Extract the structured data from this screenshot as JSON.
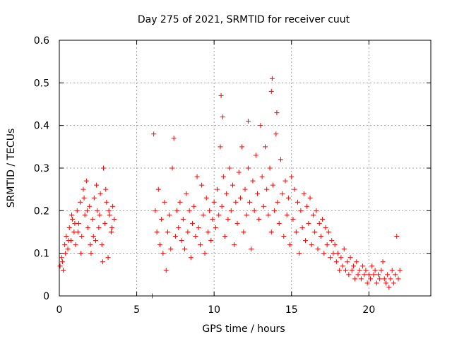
{
  "chart_data": {
    "type": "scatter",
    "title": "Day 275 of 2021, SRMTID for receiver cuut",
    "xlabel": "GPS time / hours",
    "ylabel": "SRMTID / TECUs",
    "xlim": [
      0,
      24
    ],
    "ylim": [
      0,
      0.6
    ],
    "xticks": [
      0,
      5,
      10,
      15,
      20
    ],
    "yticks": [
      0,
      0.1,
      0.2,
      0.3,
      0.4,
      0.5,
      0.6
    ],
    "xtick_labels": [
      "0",
      "5",
      "10",
      "15",
      "20"
    ],
    "ytick_labels": [
      "0",
      "0.1",
      "0.2",
      "0.3",
      "0.4",
      "0.5",
      "0.6"
    ],
    "grid": true,
    "marker": "plus",
    "color": "#ff0000",
    "series": [
      {
        "name": "SRMTID",
        "points": [
          [
            0.05,
            0.07
          ],
          [
            0.15,
            0.09
          ],
          [
            0.25,
            0.06
          ],
          [
            0.35,
            0.12
          ],
          [
            0.45,
            0.14
          ],
          [
            0.55,
            0.11
          ],
          [
            0.65,
            0.16
          ],
          [
            0.75,
            0.13
          ],
          [
            0.85,
            0.18
          ],
          [
            0.95,
            0.15
          ],
          [
            1.05,
            0.12
          ],
          [
            1.15,
            0.2
          ],
          [
            1.25,
            0.17
          ],
          [
            1.35,
            0.22
          ],
          [
            1.45,
            0.14
          ],
          [
            1.55,
            0.25
          ],
          [
            1.65,
            0.19
          ],
          [
            1.75,
            0.27
          ],
          [
            1.85,
            0.16
          ],
          [
            1.95,
            0.21
          ],
          [
            2.05,
            0.1
          ],
          [
            2.15,
            0.18
          ],
          [
            2.25,
            0.23
          ],
          [
            2.35,
            0.13
          ],
          [
            2.45,
            0.2
          ],
          [
            2.55,
            0.16
          ],
          [
            2.65,
            0.24
          ],
          [
            2.75,
            0.12
          ],
          [
            2.85,
            0.3
          ],
          [
            2.95,
            0.17
          ],
          [
            3.05,
            0.22
          ],
          [
            3.15,
            0.09
          ],
          [
            3.25,
            0.19
          ],
          [
            3.35,
            0.15
          ],
          [
            3.45,
            0.21
          ],
          [
            3.55,
            0.18
          ],
          [
            0.2,
            0.08
          ],
          [
            0.6,
            0.13
          ],
          [
            1.0,
            0.17
          ],
          [
            1.4,
            0.1
          ],
          [
            1.8,
            0.2
          ],
          [
            2.2,
            0.14
          ],
          [
            2.6,
            0.19
          ],
          [
            3.0,
            0.25
          ],
          [
            3.4,
            0.16
          ],
          [
            0.4,
            0.1
          ],
          [
            0.8,
            0.19
          ],
          [
            1.2,
            0.15
          ],
          [
            1.6,
            0.23
          ],
          [
            2.0,
            0.12
          ],
          [
            2.4,
            0.26
          ],
          [
            2.8,
            0.08
          ],
          [
            3.2,
            0.2
          ],
          [
            6.0,
            0.0
          ],
          [
            6.1,
            0.38
          ],
          [
            6.2,
            0.2
          ],
          [
            6.3,
            0.15
          ],
          [
            6.4,
            0.25
          ],
          [
            6.5,
            0.12
          ],
          [
            6.6,
            0.18
          ],
          [
            6.7,
            0.1
          ],
          [
            6.8,
            0.22
          ],
          [
            6.9,
            0.06
          ],
          [
            7.0,
            0.15
          ],
          [
            7.1,
            0.19
          ],
          [
            7.2,
            0.11
          ],
          [
            7.3,
            0.3
          ],
          [
            7.4,
            0.37
          ],
          [
            7.5,
            0.14
          ],
          [
            7.6,
            0.2
          ],
          [
            7.7,
            0.16
          ],
          [
            7.8,
            0.22
          ],
          [
            7.9,
            0.13
          ],
          [
            8.0,
            0.18
          ],
          [
            8.1,
            0.11
          ],
          [
            8.2,
            0.24
          ],
          [
            8.3,
            0.15
          ],
          [
            8.4,
            0.2
          ],
          [
            8.5,
            0.09
          ],
          [
            8.6,
            0.17
          ],
          [
            8.7,
            0.21
          ],
          [
            8.8,
            0.14
          ],
          [
            8.9,
            0.28
          ],
          [
            9.0,
            0.16
          ],
          [
            9.1,
            0.12
          ],
          [
            9.2,
            0.26
          ],
          [
            9.3,
            0.19
          ],
          [
            9.4,
            0.1
          ],
          [
            9.5,
            0.23
          ],
          [
            9.6,
            0.15
          ],
          [
            9.7,
            0.2
          ],
          [
            9.8,
            0.13
          ],
          [
            9.9,
            0.18
          ],
          [
            10.0,
            0.22
          ],
          [
            10.1,
            0.16
          ],
          [
            10.2,
            0.25
          ],
          [
            10.3,
            0.19
          ],
          [
            10.4,
            0.35
          ],
          [
            10.5,
            0.21
          ],
          [
            10.6,
            0.28
          ],
          [
            10.7,
            0.14
          ],
          [
            10.8,
            0.24
          ],
          [
            10.9,
            0.18
          ],
          [
            11.0,
            0.3
          ],
          [
            11.1,
            0.2
          ],
          [
            11.2,
            0.26
          ],
          [
            11.3,
            0.12
          ],
          [
            11.4,
            0.22
          ],
          [
            11.5,
            0.17
          ],
          [
            11.6,
            0.29
          ],
          [
            11.7,
            0.23
          ],
          [
            11.8,
            0.35
          ],
          [
            11.9,
            0.15
          ],
          [
            12.0,
            0.25
          ],
          [
            12.1,
            0.19
          ],
          [
            12.2,
            0.3
          ],
          [
            12.3,
            0.22
          ],
          [
            12.4,
            0.11
          ],
          [
            12.5,
            0.27
          ],
          [
            12.6,
            0.2
          ],
          [
            12.7,
            0.33
          ],
          [
            12.8,
            0.24
          ],
          [
            12.9,
            0.18
          ],
          [
            13.0,
            0.4
          ],
          [
            13.1,
            0.28
          ],
          [
            13.2,
            0.21
          ],
          [
            13.3,
            0.35
          ],
          [
            13.4,
            0.25
          ],
          [
            13.5,
            0.19
          ],
          [
            13.6,
            0.3
          ],
          [
            13.7,
            0.15
          ],
          [
            13.8,
            0.26
          ],
          [
            13.9,
            0.2
          ],
          [
            14.0,
            0.38
          ],
          [
            14.1,
            0.22
          ],
          [
            14.2,
            0.17
          ],
          [
            14.3,
            0.32
          ],
          [
            14.4,
            0.24
          ],
          [
            14.5,
            0.14
          ],
          [
            14.6,
            0.27
          ],
          [
            14.7,
            0.19
          ],
          [
            14.8,
            0.23
          ],
          [
            14.9,
            0.12
          ],
          [
            15.0,
            0.28
          ],
          [
            15.1,
            0.18
          ],
          [
            15.2,
            0.25
          ],
          [
            15.3,
            0.15
          ],
          [
            15.4,
            0.22
          ],
          [
            15.5,
            0.1
          ],
          [
            15.6,
            0.2
          ],
          [
            15.7,
            0.16
          ],
          [
            15.8,
            0.24
          ],
          [
            15.9,
            0.13
          ],
          [
            16.0,
            0.21
          ],
          [
            16.1,
            0.17
          ],
          [
            16.2,
            0.23
          ],
          [
            16.3,
            0.12
          ],
          [
            16.4,
            0.19
          ],
          [
            16.5,
            0.15
          ],
          [
            16.6,
            0.2
          ],
          [
            16.7,
            0.11
          ],
          [
            16.8,
            0.17
          ],
          [
            16.9,
            0.14
          ],
          [
            17.0,
            0.18
          ],
          [
            17.1,
            0.1
          ],
          [
            17.2,
            0.16
          ],
          [
            17.3,
            0.12
          ],
          [
            17.4,
            0.15
          ],
          [
            17.5,
            0.09
          ],
          [
            17.6,
            0.13
          ],
          [
            17.7,
            0.1
          ],
          [
            17.8,
            0.12
          ],
          [
            17.9,
            0.08
          ],
          [
            18.0,
            0.1
          ],
          [
            18.1,
            0.06
          ],
          [
            18.2,
            0.09
          ],
          [
            18.3,
            0.07
          ],
          [
            18.4,
            0.11
          ],
          [
            18.5,
            0.06
          ],
          [
            18.6,
            0.08
          ],
          [
            18.7,
            0.05
          ],
          [
            18.8,
            0.09
          ],
          [
            18.9,
            0.06
          ],
          [
            19.0,
            0.07
          ],
          [
            19.1,
            0.04
          ],
          [
            19.2,
            0.08
          ],
          [
            19.3,
            0.05
          ],
          [
            19.4,
            0.06
          ],
          [
            19.5,
            0.04
          ],
          [
            19.6,
            0.07
          ],
          [
            19.7,
            0.05
          ],
          [
            19.8,
            0.06
          ],
          [
            19.9,
            0.03
          ],
          [
            20.0,
            0.05
          ],
          [
            20.1,
            0.04
          ],
          [
            20.2,
            0.07
          ],
          [
            20.3,
            0.05
          ],
          [
            20.4,
            0.06
          ],
          [
            20.5,
            0.03
          ],
          [
            20.6,
            0.05
          ],
          [
            20.7,
            0.04
          ],
          [
            20.8,
            0.06
          ],
          [
            20.9,
            0.08
          ],
          [
            21.0,
            0.04
          ],
          [
            21.1,
            0.03
          ],
          [
            21.2,
            0.05
          ],
          [
            21.3,
            0.02
          ],
          [
            21.4,
            0.04
          ],
          [
            21.5,
            0.06
          ],
          [
            21.6,
            0.03
          ],
          [
            21.7,
            0.05
          ],
          [
            21.8,
            0.14
          ],
          [
            21.9,
            0.04
          ],
          [
            22.0,
            0.06
          ],
          [
            10.45,
            0.47
          ],
          [
            13.75,
            0.51
          ],
          [
            13.7,
            0.48
          ],
          [
            10.55,
            0.42
          ],
          [
            12.2,
            0.41
          ],
          [
            14.05,
            0.43
          ]
        ]
      }
    ]
  }
}
